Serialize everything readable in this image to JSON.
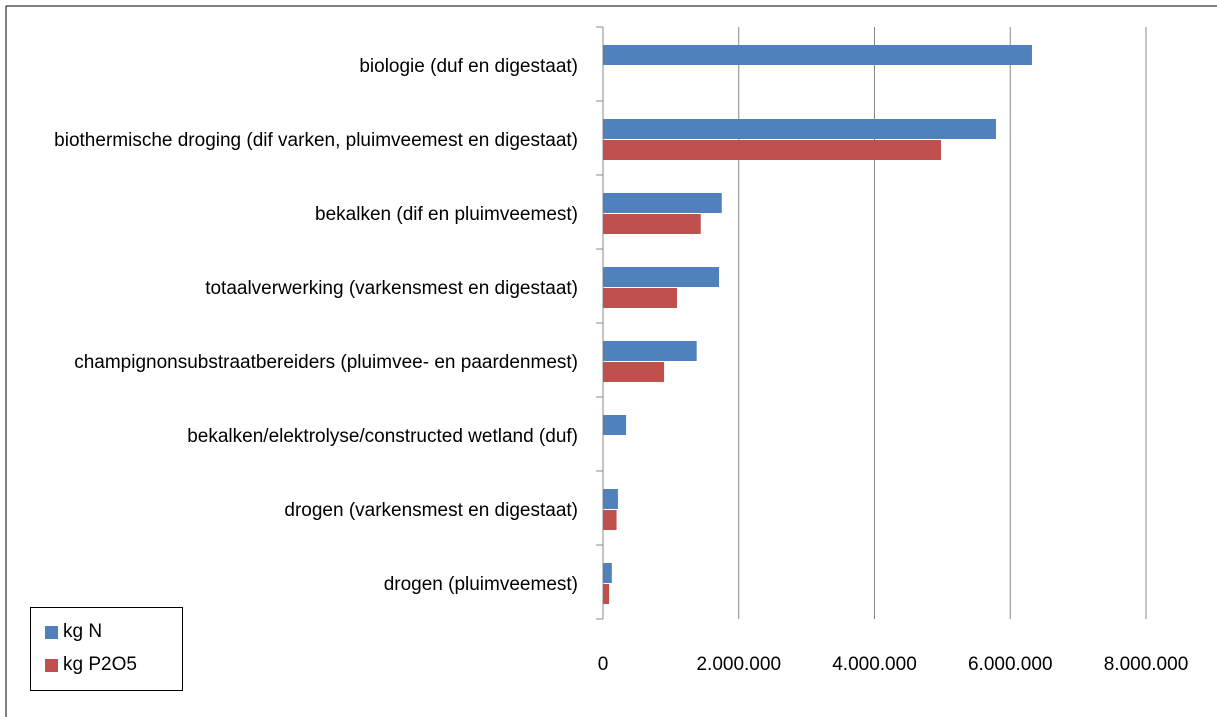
{
  "chart_data": {
    "type": "bar",
    "orientation": "horizontal",
    "categories": [
      "biologie (duf en digestaat)",
      "biothermische droging (dif varken, pluimveemest en digestaat)",
      "bekalken (dif en pluimveemest)",
      "totaalverwerking (varkensmest en digestaat)",
      "champignonsubstraatbereiders (pluimvee- en paardenmest)",
      "bekalken/elektrolyse/constructed wetland (duf)",
      "drogen (varkensmest en digestaat)",
      "drogen (pluimveemest)"
    ],
    "series": [
      {
        "name": "kg N",
        "color": "#4f81bd",
        "values": [
          6320000,
          5790000,
          1750000,
          1710000,
          1380000,
          340000,
          220000,
          130000
        ]
      },
      {
        "name": "kg P2O5",
        "color": "#c0504d",
        "values": [
          null,
          4980000,
          1440000,
          1090000,
          900000,
          null,
          200000,
          90000
        ]
      }
    ],
    "xlim": [
      0,
      8000000
    ],
    "xticks": [
      0,
      {
        "value": 2000000,
        "label": "2.000.000"
      },
      {
        "value": 4000000,
        "label": "4.000.000"
      },
      {
        "value": 6000000,
        "label": "6.000.000"
      },
      {
        "value": 8000000,
        "label": "8.000.000"
      }
    ],
    "grid": true,
    "legend": "bottom-left"
  }
}
